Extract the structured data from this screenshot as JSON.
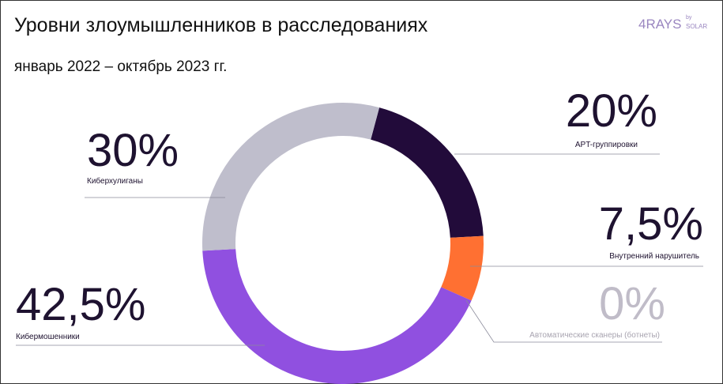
{
  "logo": {
    "brand": "4RAYS",
    "by": "by",
    "owner": "SOLAR"
  },
  "chart_data": {
    "type": "donut",
    "title": "Уровни злоумышленников в расследованиях",
    "subtitle": "январь 2022 – октябрь 2023 гг.",
    "categories": [
      "APT-группировки",
      "Внутренний нарушитель",
      "Автоматические сканеры (ботнеты)",
      "Кибермошенники",
      "Киберхулиганы"
    ],
    "values": [
      20,
      7.5,
      0,
      42.5,
      30
    ],
    "value_labels": [
      "20%",
      "7,5%",
      "0%",
      "42,5%",
      "30%"
    ],
    "colors": [
      "#220b3a",
      "#ff7032",
      "#c8c4d0",
      "#9050e0",
      "#bfbecc"
    ]
  }
}
